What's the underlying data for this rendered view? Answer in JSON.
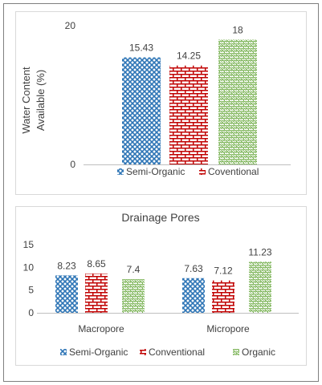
{
  "chart_data": [
    {
      "type": "bar",
      "title": "",
      "ylabel": "Water Content Available (%)",
      "ylabel_lines": [
        "Water Content",
        "Available (%)"
      ],
      "ylim": [
        0,
        20
      ],
      "yticks": [
        0,
        20
      ],
      "categories": [
        ""
      ],
      "series": [
        {
          "name": "Semi-Organic",
          "values": [
            15.43
          ]
        },
        {
          "name": "Coventional",
          "values": [
            14.25
          ]
        },
        {
          "name": "",
          "values": [
            18
          ]
        }
      ],
      "data_labels": [
        "15.43",
        "14.25",
        "18"
      ],
      "legend": {
        "position": "bottom",
        "entries": [
          "Semi-Organic",
          "Coventional"
        ]
      },
      "grid": false
    },
    {
      "type": "bar",
      "title": "Drainage Pores",
      "ylabel": "",
      "ylim": [
        0,
        15
      ],
      "yticks": [
        0,
        5,
        10,
        15
      ],
      "categories": [
        "Macropore",
        "Micropore"
      ],
      "series": [
        {
          "name": "Semi-Organic",
          "values": [
            8.23,
            7.63
          ]
        },
        {
          "name": "Conventional",
          "values": [
            8.65,
            7.12
          ]
        },
        {
          "name": "Organic",
          "values": [
            7.4,
            11.23
          ]
        }
      ],
      "data_labels": [
        [
          "8.23",
          "8.65",
          "7.4"
        ],
        [
          "7.63",
          "7.12",
          "11.23"
        ]
      ],
      "legend": {
        "position": "bottom",
        "entries": [
          "Semi-Organic",
          "Conventional",
          "Organic"
        ]
      },
      "grid": false
    }
  ],
  "colors": {
    "semi_organic": "#2e75b6",
    "conventional": "#c00000",
    "organic": "#70ad47",
    "frame": "#7f7f7f",
    "axis": "#bfbfbf",
    "text": "#404040"
  }
}
